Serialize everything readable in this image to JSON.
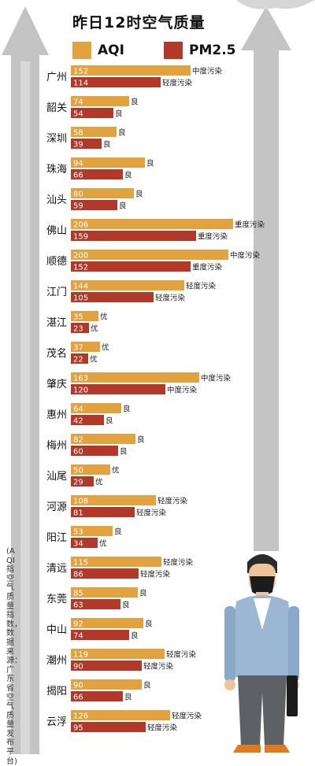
{
  "title": "昨日12时空气质量",
  "legend": [
    {
      "name": "AQI",
      "color": "#E2A23F"
    },
    {
      "name": "PM2.5",
      "color": "#B2392A"
    }
  ],
  "note": "(AQI指空气质量指数，数据来源：广东省空气质量发布平台)",
  "chart_data": {
    "type": "bar",
    "orientation": "horizontal",
    "title": "昨日12时空气质量",
    "categories": [
      "广州",
      "韶关",
      "深圳",
      "珠海",
      "汕头",
      "佛山",
      "顺德",
      "江门",
      "湛江",
      "茂名",
      "肇庆",
      "惠州",
      "梅州",
      "汕尾",
      "河源",
      "阳江",
      "清远",
      "东莞",
      "中山",
      "潮州",
      "揭阳",
      "云浮"
    ],
    "series": [
      {
        "name": "AQI",
        "values": [
          152,
          74,
          58,
          94,
          80,
          206,
          200,
          144,
          35,
          37,
          163,
          64,
          82,
          50,
          108,
          53,
          115,
          85,
          92,
          119,
          90,
          126
        ],
        "labels": [
          "中度污染",
          "良",
          "良",
          "良",
          "良",
          "重度污染",
          "中度污染",
          "轻度污染",
          "优",
          "优",
          "中度污染",
          "良",
          "良",
          "优",
          "轻度污染",
          "良",
          "轻度污染",
          "良",
          "良",
          "轻度污染",
          "良",
          "轻度污染"
        ]
      },
      {
        "name": "PM2.5",
        "values": [
          114,
          54,
          39,
          66,
          59,
          159,
          152,
          105,
          23,
          22,
          120,
          42,
          60,
          29,
          81,
          34,
          86,
          63,
          74,
          90,
          66,
          95
        ],
        "labels": [
          "轻度污染",
          "良",
          "良",
          "良",
          "良",
          "重度污染",
          "重度污染",
          "轻度污染",
          "优",
          "优",
          "中度污染",
          "良",
          "良",
          "优",
          "轻度污染",
          "优",
          "轻度污染",
          "良",
          "良",
          "轻度污染",
          "良",
          "轻度污染"
        ]
      }
    ],
    "xlim": [
      0,
      220
    ],
    "grid": false,
    "legend_position": "top"
  }
}
